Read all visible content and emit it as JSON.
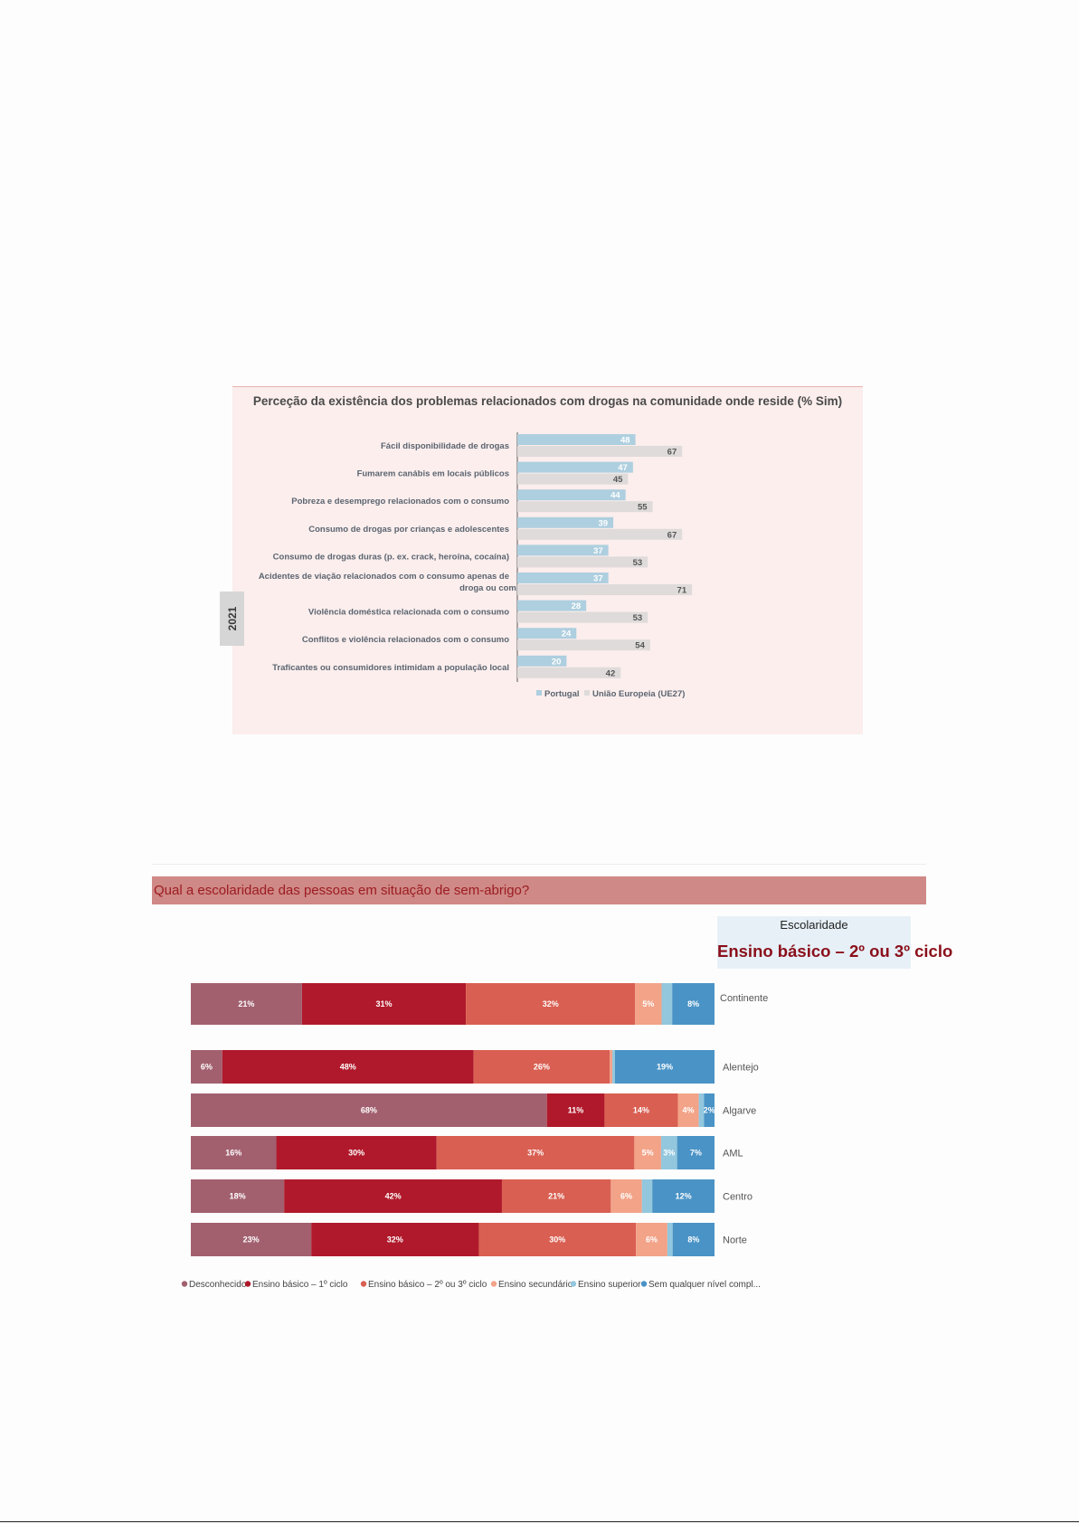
{
  "chart1": {
    "title": "Perceção da existência dos problemas relacionados com drogas na comunidade onde reside (% Sim)",
    "year_label": "2021",
    "colors": {
      "portugal": "#aecfdf",
      "ue27": "#dedbda",
      "portugal_text": "#ffffff",
      "ue27_text": "#555555"
    }
  },
  "chart2": {
    "header": "Qual a escolaridade das pessoas em situação de sem-abrigo?",
    "card_label": "Escolaridade",
    "card_value": "Ensino básico – 2º ou 3º ciclo"
  },
  "chart_data": [
    {
      "type": "bar",
      "orientation": "horizontal",
      "title": "Perceção da existência dos problemas relacionados com drogas na comunidade onde reside (% Sim)",
      "categories": [
        "Fácil disponibilidade de drogas",
        "Fumarem canábis em locais públicos",
        "Pobreza e desemprego relacionados com o consumo",
        "Consumo de drogas por crianças e adolescentes",
        "Consumo de drogas duras (p. ex. crack, heroína, cocaína)",
        "Acidentes de viação relacionados com o consumo apenas de droga ou com álcool e droga",
        "Violência doméstica relacionada com o consumo",
        "Conflitos e violência relacionados com o consumo",
        "Traficantes ou consumidores intimidam a população local"
      ],
      "series": [
        {
          "name": "Portugal",
          "values": [
            48,
            47,
            44,
            39,
            37,
            37,
            28,
            24,
            20
          ]
        },
        {
          "name": "União Europeia (UE27)",
          "values": [
            67,
            45,
            55,
            67,
            53,
            71,
            53,
            54,
            42
          ]
        }
      ],
      "legend_position": "bottom",
      "xlim": [
        0,
        100
      ]
    },
    {
      "type": "bar",
      "orientation": "horizontal",
      "stacked": true,
      "title": "Qual a escolaridade das pessoas em situação de sem-abrigo?",
      "categories": [
        "Continente",
        "Alentejo",
        "Algarve",
        "AML",
        "Centro",
        "Norte"
      ],
      "series": [
        {
          "name": "Desconhecido",
          "color": "#a2606f",
          "values": [
            21,
            6,
            68,
            16,
            18,
            23
          ],
          "labels": [
            "21%",
            "6%",
            "68%",
            "16%",
            "18%",
            "23%"
          ]
        },
        {
          "name": "Ensino básico – 1º ciclo",
          "color": "#b0192b",
          "values": [
            31,
            48,
            11,
            30,
            42,
            32
          ],
          "labels": [
            "31%",
            "48%",
            "11%",
            "30%",
            "42%",
            "32%"
          ]
        },
        {
          "name": "Ensino básico – 2º ou 3º ciclo",
          "color": "#d95f52",
          "values": [
            32,
            26,
            14,
            37,
            21,
            30
          ],
          "labels": [
            "32%",
            "26%",
            "14%",
            "37%",
            "21%",
            "30%"
          ]
        },
        {
          "name": "Ensino secundário",
          "color": "#f2a388",
          "values": [
            5,
            0.5,
            4,
            5,
            6,
            6
          ],
          "labels": [
            "5%",
            "",
            "4%",
            "5%",
            "6%",
            "6%"
          ]
        },
        {
          "name": "Ensino superior",
          "color": "#92c7de",
          "values": [
            2,
            0.5,
            1,
            3,
            2,
            1
          ],
          "labels": [
            "",
            "",
            "",
            "3%",
            "",
            ""
          ]
        },
        {
          "name": "Sem qualquer nível compl...",
          "color": "#4a93c6",
          "values": [
            8,
            19,
            2,
            7,
            12,
            8
          ],
          "labels": [
            "8%",
            "19%",
            "2%",
            "7%",
            "12%",
            "8%"
          ]
        }
      ],
      "legend_position": "bottom"
    }
  ]
}
